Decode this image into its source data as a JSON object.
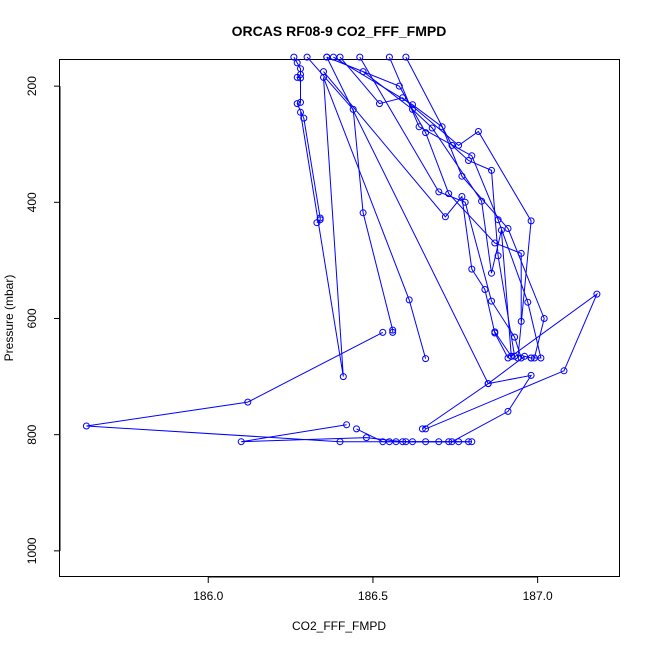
{
  "chart_data": {
    "type": "line",
    "title": "ORCAS RF08-9 CO2_FFF_FMPD",
    "xlabel": "CO2_FFF_FMPD",
    "ylabel": "Pressure (mbar)",
    "xlim": [
      185.55,
      187.25
    ],
    "ylim": [
      1045,
      155
    ],
    "y_inverted": true,
    "x_ticks": [
      186.0,
      186.5,
      187.0
    ],
    "x_tick_labels": [
      "186.0",
      "186.5",
      "187.0"
    ],
    "y_ticks": [
      200,
      400,
      600,
      800,
      1000
    ],
    "y_tick_labels": [
      "200",
      "400",
      "600",
      "800",
      "1000"
    ],
    "grid": false,
    "legend": "none",
    "line_color": "#0000ff",
    "marker": "open-circle",
    "series": [
      {
        "x": [
          186.26,
          186.27,
          186.28,
          186.28,
          186.27,
          186.28,
          186.28,
          186.27,
          186.29,
          186.34,
          186.34,
          186.33
        ],
        "y": [
          150,
          160,
          170,
          180,
          185,
          186,
          228,
          230,
          255,
          427,
          430,
          435
        ]
      },
      {
        "x": [
          186.28,
          186.41,
          186.35,
          186.61,
          186.66
        ],
        "y": [
          245,
          700,
          185,
          568,
          669
        ]
      },
      {
        "x": [
          186.3,
          186.44,
          186.47,
          186.56,
          186.56
        ],
        "y": [
          150,
          240,
          418,
          620,
          624
        ]
      },
      {
        "x": [
          186.53,
          186.12,
          185.63,
          186.4,
          186.8
        ],
        "y": [
          624,
          744,
          785,
          812,
          812
        ]
      },
      {
        "x": [
          186.79,
          186.59,
          186.48,
          186.1,
          186.42
        ],
        "y": [
          812,
          812,
          805,
          812,
          783
        ]
      },
      {
        "x": [
          186.45,
          186.53,
          186.55,
          186.57,
          186.6,
          186.62,
          186.66,
          186.7,
          186.73,
          186.76
        ],
        "y": [
          790,
          812,
          812,
          812,
          812,
          812,
          812,
          812,
          812,
          812
        ]
      },
      {
        "x": [
          186.74,
          186.91,
          186.98,
          186.85,
          186.65
        ],
        "y": [
          812,
          760,
          698,
          712,
          790
        ]
      },
      {
        "x": [
          186.66,
          187.08,
          187.18,
          186.92,
          186.87
        ],
        "y": [
          790,
          690,
          558,
          665,
          623
        ]
      },
      {
        "x": [
          186.4,
          186.52,
          186.59,
          186.76,
          186.82,
          186.98,
          186.94
        ],
        "y": [
          150,
          230,
          220,
          302,
          278,
          432,
          668
        ]
      },
      {
        "x": [
          186.38,
          186.62,
          186.71,
          186.77,
          186.91,
          187.02,
          186.99
        ],
        "y": [
          150,
          232,
          270,
          355,
          445,
          600,
          668
        ]
      },
      {
        "x": [
          186.55,
          186.64,
          186.8,
          186.88,
          186.97,
          187.01,
          186.98
        ],
        "y": [
          150,
          270,
          320,
          430,
          572,
          668,
          668
        ]
      },
      {
        "x": [
          186.46,
          186.7,
          186.78,
          186.86,
          186.93,
          186.95
        ],
        "y": [
          150,
          382,
          400,
          570,
          632,
          668
        ]
      },
      {
        "x": [
          186.35,
          186.72,
          186.77,
          186.8,
          186.84,
          186.87,
          186.91
        ],
        "y": [
          175,
          425,
          390,
          515,
          550,
          625,
          668
        ]
      },
      {
        "x": [
          186.6,
          186.74,
          186.79,
          186.86,
          186.88,
          186.93
        ],
        "y": [
          150,
          302,
          328,
          345,
          492,
          665
        ]
      },
      {
        "x": [
          186.47,
          186.62,
          186.68,
          186.83,
          186.86,
          186.89,
          186.92
        ],
        "y": [
          175,
          240,
          272,
          398,
          522,
          448,
          665
        ]
      },
      {
        "x": [
          186.36,
          186.58,
          186.66,
          186.73,
          186.87,
          186.95,
          186.95
        ],
        "y": [
          150,
          200,
          280,
          385,
          470,
          488,
          605
        ]
      },
      {
        "x": [
          186.36,
          186.85,
          186.96,
          186.98
        ],
        "y": [
          150,
          712,
          665,
          668
        ]
      }
    ]
  }
}
